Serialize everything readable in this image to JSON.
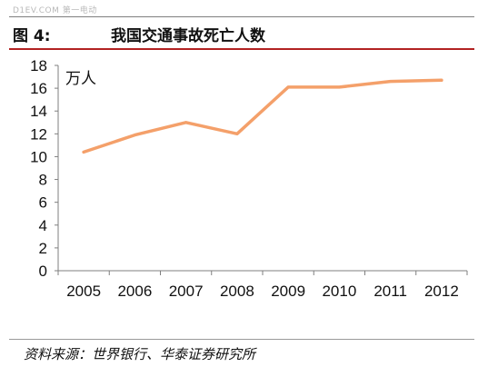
{
  "watermark": "D1EV.COM 第一电动",
  "figure": {
    "label": "图 4:",
    "title": "我国交通事故死亡人数"
  },
  "chart_data": {
    "type": "line",
    "unit_label": "万人",
    "x": [
      "2005",
      "2006",
      "2007",
      "2008",
      "2009",
      "2010",
      "2011",
      "2012"
    ],
    "series": [
      {
        "values": [
          10.4,
          11.9,
          13.0,
          12.0,
          16.1,
          16.1,
          16.6,
          16.7
        ]
      }
    ],
    "y_ticks": [
      "0",
      "2",
      "4",
      "6",
      "8",
      "10",
      "12",
      "14",
      "16",
      "18"
    ],
    "ylim": [
      0,
      18
    ],
    "grid": false,
    "line_color": "#f4a06a"
  },
  "source": "资料来源：世界银行、华泰证券研究所"
}
